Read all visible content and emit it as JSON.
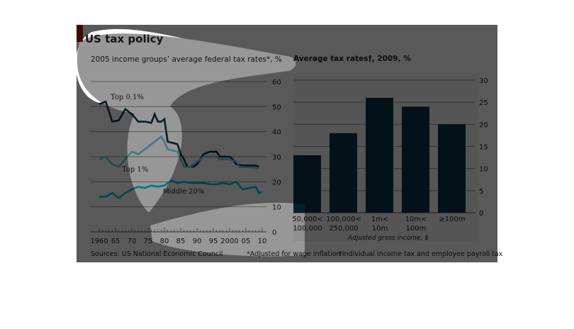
{
  "header": {
    "title": "US tax policy",
    "subtitle": "2005 income groups’ average federal tax rates*, %"
  },
  "right_title": "Average tax rates†, 2009, %",
  "footer": {
    "source": "Sources: US National Economic Council",
    "note1": "*Adjusted for wage inflation",
    "note2": "†Individual income tax and employee payroll tax"
  },
  "colors": {
    "top01": "#0f3344",
    "top1": "#6fcbe8",
    "middle": "#00c4e4",
    "bars": "#0a3646",
    "accent": "#c0101a"
  },
  "chart_data": [
    {
      "type": "line",
      "title": "2005 income groups’ average federal tax rates*, %",
      "ylim": [
        0,
        60
      ],
      "yticks": [
        0,
        10,
        20,
        30,
        40,
        50,
        60
      ],
      "xlim": [
        1958,
        2012
      ],
      "xticks": [
        1960,
        1965,
        1970,
        1975,
        1980,
        1985,
        1990,
        1995,
        2000,
        2005,
        2010
      ],
      "xtick_labels": [
        "1960",
        "65",
        "70",
        "75",
        "80",
        "85",
        "90",
        "95",
        "2000",
        "05",
        "10"
      ],
      "series": [
        {
          "name": "Top 0.1%",
          "x": [
            1960,
            1962,
            1964,
            1966,
            1968,
            1970,
            1972,
            1974,
            1976,
            1977,
            1978,
            1979,
            1980,
            1981,
            1984,
            1985,
            1986,
            1987,
            1989,
            1990,
            1991,
            1992,
            1994,
            1996,
            1997,
            2000,
            2001,
            2002,
            2004,
            2008,
            2009
          ],
          "y": [
            51,
            52,
            44,
            44.5,
            49,
            47,
            44,
            44,
            43.5,
            47,
            44,
            44,
            45,
            36,
            35,
            31,
            29,
            26,
            26,
            27,
            29,
            31,
            32,
            32,
            30,
            30,
            29,
            27,
            26.5,
            26.5,
            26
          ]
        },
        {
          "name": "Top 1%",
          "x": [
            1960,
            1962,
            1964,
            1966,
            1968,
            1970,
            1972,
            1974,
            1976,
            1978,
            1979,
            1980,
            1981,
            1984,
            1985,
            1986,
            1987,
            1988,
            1989,
            1990,
            1992,
            1994,
            1996,
            1997,
            2000,
            2002,
            2003,
            2009
          ],
          "y": [
            29,
            30,
            27,
            26,
            29,
            32,
            31,
            33,
            35,
            37,
            38,
            36,
            33,
            32,
            29,
            26,
            26,
            26,
            27,
            28,
            30,
            30,
            30,
            29,
            29,
            28,
            26,
            25.5
          ]
        },
        {
          "name": "Middle 20%",
          "x": [
            1960,
            1962,
            1964,
            1966,
            1968,
            1970,
            1972,
            1974,
            1976,
            1978,
            1980,
            1982,
            1984,
            1986,
            1988,
            1990,
            1992,
            1994,
            1996,
            1998,
            2000,
            2002,
            2004,
            2006,
            2008,
            2009,
            2010
          ],
          "y": [
            14,
            14,
            15.5,
            13.5,
            15.5,
            17,
            18,
            17.5,
            18.5,
            18,
            18.5,
            20.5,
            19.5,
            20,
            19.5,
            19.5,
            19.5,
            19,
            19,
            19.5,
            19,
            20,
            17,
            17.5,
            18,
            15.5,
            16
          ]
        }
      ]
    },
    {
      "type": "bar",
      "title": "Average tax rates†, 2009, %",
      "xlabel": "Adjusted gross income, $",
      "ylim": [
        0,
        30
      ],
      "yticks": [
        0,
        5,
        10,
        15,
        20,
        25,
        30
      ],
      "categories": [
        [
          "50,000<",
          "100,000"
        ],
        [
          "100,000<",
          "250,000"
        ],
        [
          "1m<",
          "10m"
        ],
        [
          "10m<",
          "100m"
        ],
        [
          "≥100m",
          ""
        ]
      ],
      "values": [
        13,
        18,
        26,
        24,
        20
      ]
    }
  ]
}
